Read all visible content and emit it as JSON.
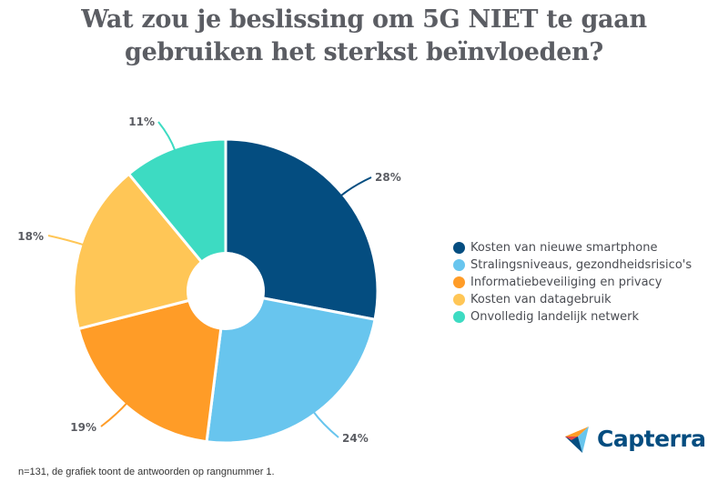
{
  "title": {
    "line1": "Wat zou je beslissing om 5G NIET te gaan",
    "line2": "gebruiken het sterkst beïnvloeden?"
  },
  "chart_data": {
    "type": "pie",
    "subtype": "donut",
    "title": "Wat zou je beslissing om 5G NIET te gaan gebruiken het sterkst beïnvloeden?",
    "categories": [
      "Kosten van nieuwe smartphone",
      "Stralingsniveaus, gezondheidsrisico's",
      "Informatiebeveiliging en privacy",
      "Kosten van datagebruik",
      "Onvolledig landelijk netwerk"
    ],
    "values": [
      28,
      24,
      19,
      18,
      11
    ],
    "labels": [
      "28%",
      "24%",
      "19%",
      "18%",
      "11%"
    ],
    "colors": [
      "#044d80",
      "#68c5ee",
      "#ff9c27",
      "#ffc656",
      "#3ddbc2"
    ],
    "unit": "%",
    "legend_position": "right",
    "start_angle": "12 o'clock, clockwise"
  },
  "legend": {
    "items": [
      {
        "label": "Kosten van nieuwe smartphone",
        "color": "#044d80"
      },
      {
        "label": "Stralingsniveaus, gezondheidsrisico's",
        "color": "#68c5ee"
      },
      {
        "label": "Informatiebeveiliging en privacy",
        "color": "#ff9c27"
      },
      {
        "label": "Kosten van datagebruik",
        "color": "#ffc656"
      },
      {
        "label": "Onvolledig landelijk netwerk",
        "color": "#3ddbc2"
      }
    ]
  },
  "footnote": "n=131, de grafiek toont de antwoorden op rangnummer 1.",
  "logo": {
    "text": "Capterra",
    "color": "#044d80"
  }
}
